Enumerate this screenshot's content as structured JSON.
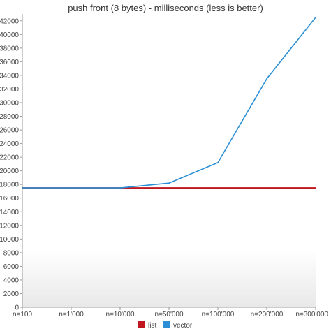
{
  "chart_data": {
    "type": "line",
    "title": "push front (8 bytes) - milliseconds (less is better)",
    "xlabel": "",
    "ylabel": "",
    "categories": [
      "n=100",
      "n=1'000",
      "n=10'000",
      "n=50'000",
      "n=100'000",
      "n=200'000",
      "n=300'000"
    ],
    "ylim": [
      0,
      43000
    ],
    "yticks": [
      0,
      2000,
      4000,
      6000,
      8000,
      10000,
      12000,
      14000,
      16000,
      18000,
      20000,
      22000,
      24000,
      26000,
      28000,
      30000,
      32000,
      34000,
      36000,
      38000,
      40000,
      42000
    ],
    "grid": false,
    "legend": "bottom",
    "series": [
      {
        "name": "list",
        "color": "#c0161f",
        "values": [
          17500,
          17500,
          17500,
          17500,
          17500,
          17500,
          17500
        ]
      },
      {
        "name": "vector",
        "color": "#2b8fd6",
        "values": [
          17500,
          17500,
          17500,
          18200,
          21200,
          33500,
          42500
        ]
      }
    ]
  }
}
